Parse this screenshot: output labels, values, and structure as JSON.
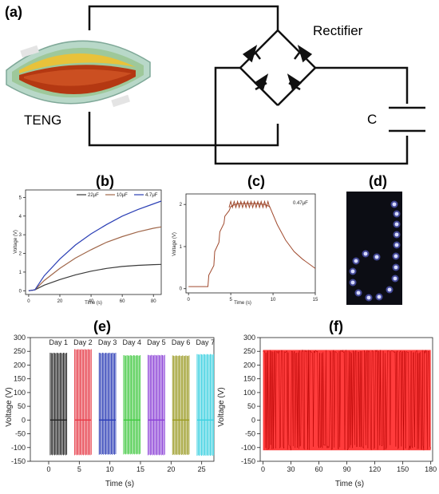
{
  "panel_labels": {
    "a": "(a)",
    "b": "(b)",
    "c": "(c)",
    "d": "(d)",
    "e": "(e)",
    "f": "(f)"
  },
  "circuit": {
    "rectifier_label": "Rectifier",
    "teng_label": "TENG",
    "capacitor_label": "C"
  },
  "colors": {
    "c22": "#3a3a3a",
    "c10": "#a0674a",
    "c47": "#2b3fb5",
    "c047": "#a04a2e",
    "day1": "#222222",
    "day2": "#e63946",
    "day3": "#2a3bb5",
    "day4": "#3fc83f",
    "day5": "#8a3fd6",
    "day6": "#9a9a22",
    "day7": "#3ad0e0",
    "f_line": "#ff1a1a"
  },
  "chart_data": [
    {
      "id": "b",
      "type": "line",
      "xlabel": "Time (s)",
      "ylabel": "Voltage (V)",
      "xlim": [
        -2,
        85
      ],
      "ylim": [
        -0.2,
        5.4
      ],
      "xticks": [
        0,
        20,
        40,
        60,
        80
      ],
      "yticks": [
        0,
        1,
        2,
        3,
        4,
        5
      ],
      "legend": "top",
      "grid": false,
      "series": [
        {
          "name": "22μF",
          "x": [
            0,
            4,
            10,
            20,
            30,
            40,
            50,
            60,
            70,
            80,
            85
          ],
          "values": [
            0,
            0.05,
            0.3,
            0.6,
            0.85,
            1.05,
            1.2,
            1.3,
            1.36,
            1.4,
            1.41
          ]
        },
        {
          "name": "10μF",
          "x": [
            0,
            4,
            10,
            20,
            30,
            40,
            50,
            60,
            70,
            80,
            85
          ],
          "values": [
            0,
            0.05,
            0.55,
            1.2,
            1.75,
            2.2,
            2.6,
            2.9,
            3.15,
            3.35,
            3.42
          ]
        },
        {
          "name": "4.7μF",
          "x": [
            0,
            4,
            10,
            20,
            30,
            40,
            50,
            60,
            70,
            80,
            85
          ],
          "values": [
            0,
            0.05,
            0.8,
            1.7,
            2.45,
            3.05,
            3.55,
            4.0,
            4.35,
            4.65,
            4.8
          ]
        }
      ]
    },
    {
      "id": "c",
      "type": "line",
      "xlabel": "Time (s)",
      "ylabel": "Voltage (V)",
      "xlim": [
        -0.3,
        15
      ],
      "ylim": [
        -0.1,
        2.25
      ],
      "xticks": [
        0,
        5,
        10,
        15
      ],
      "yticks": [
        0,
        1,
        2
      ],
      "annotation": "0.47μF",
      "series": [
        {
          "x": [
            0,
            2.3,
            2.4,
            3.0,
            3.1,
            3.6,
            3.7,
            4.2,
            4.3,
            4.8,
            5.0,
            5.5,
            6.0,
            7.0,
            8.0,
            9.0,
            9.6,
            10.5,
            11.5,
            12.5,
            13.5,
            15.0
          ],
          "values": [
            0.05,
            0.05,
            0.32,
            0.55,
            0.88,
            1.1,
            1.35,
            1.55,
            1.72,
            1.85,
            1.95,
            2.0,
            2.02,
            2.02,
            2.02,
            2.0,
            1.95,
            1.52,
            1.15,
            0.88,
            0.7,
            0.48
          ]
        }
      ]
    },
    {
      "id": "e",
      "type": "bar",
      "xlabel": "Time (s)",
      "ylabel": "Voltage (V)",
      "xlim": [
        -3,
        27
      ],
      "ylim": [
        -150,
        300
      ],
      "xticks": [
        0,
        5,
        10,
        15,
        20,
        25
      ],
      "yticks": [
        -150,
        -100,
        -50,
        0,
        50,
        100,
        150,
        200,
        250,
        300
      ],
      "series": [
        {
          "name": "Day 1",
          "x_range": [
            0,
            3
          ],
          "peak": 245,
          "trough": -128
        },
        {
          "name": "Day 2",
          "x_range": [
            4,
            7
          ],
          "peak": 258,
          "trough": -128
        },
        {
          "name": "Day 3",
          "x_range": [
            8,
            11
          ],
          "peak": 245,
          "trough": -126
        },
        {
          "name": "Day 4",
          "x_range": [
            12,
            15
          ],
          "peak": 236,
          "trough": -125
        },
        {
          "name": "Day 5",
          "x_range": [
            16,
            19
          ],
          "peak": 237,
          "trough": -128
        },
        {
          "name": "Day 6",
          "x_range": [
            20,
            23
          ],
          "peak": 235,
          "trough": -127
        },
        {
          "name": "Day 7",
          "x_range": [
            24,
            27
          ],
          "peak": 240,
          "trough": -130
        }
      ]
    },
    {
      "id": "f",
      "type": "line",
      "xlabel": "Time (s)",
      "ylabel": "Voltage (V)",
      "xlim": [
        -3,
        182
      ],
      "ylim": [
        -150,
        300
      ],
      "xticks": [
        0,
        30,
        60,
        90,
        120,
        150,
        180
      ],
      "yticks": [
        -150,
        -100,
        -50,
        0,
        50,
        100,
        150,
        200,
        250,
        300
      ],
      "series": [
        {
          "x_range": [
            0,
            180
          ],
          "peak": 255,
          "trough": -110
        }
      ]
    }
  ]
}
